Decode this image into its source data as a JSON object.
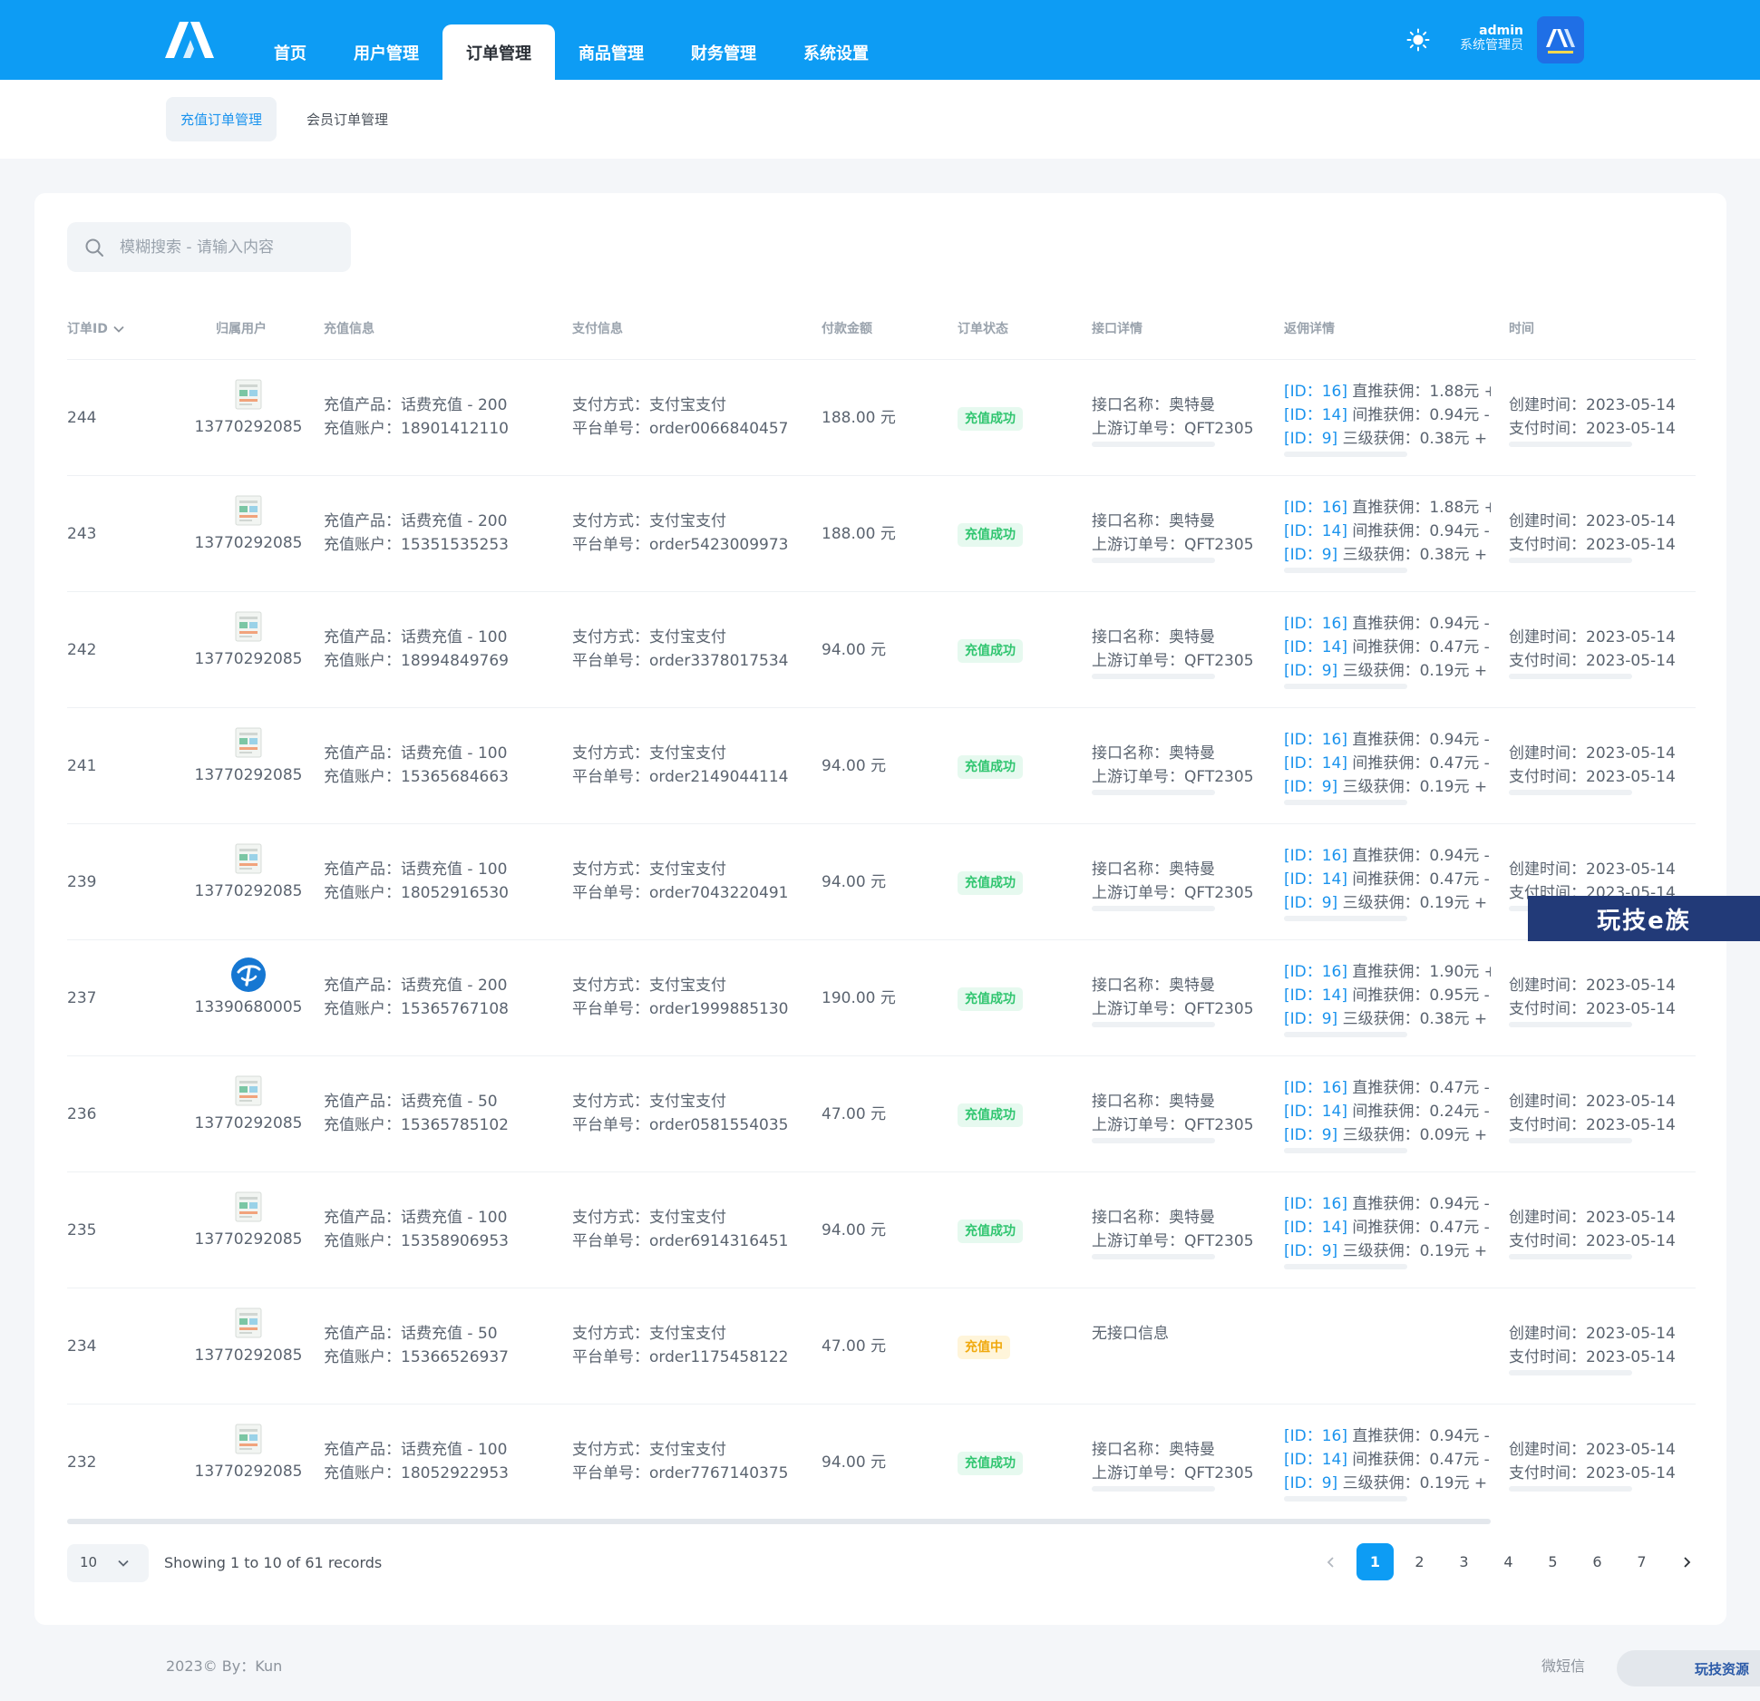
{
  "header": {
    "nav": [
      "首页",
      "用户管理",
      "订单管理",
      "商品管理",
      "财务管理",
      "系统设置"
    ],
    "active_index": 2,
    "user_name": "admin",
    "user_role": "系统管理员",
    "avatar_text": "AA"
  },
  "subnav": {
    "active": "充值订单管理",
    "other": "会员订单管理"
  },
  "search": {
    "placeholder": "模糊搜索 - 请输入内容"
  },
  "table": {
    "headers": [
      "订单ID",
      "归属用户",
      "充值信息",
      "支付信息",
      "付款金额",
      "订单状态",
      "接口详情",
      "返佣详情",
      "时间"
    ],
    "rows": [
      {
        "id": "244",
        "user": "13770292085",
        "product": "充值产品：话费充值 - 200",
        "account": "充值账户：18901412110",
        "pay_method": "支付方式：支付宝支付",
        "order_no": "平台单号：order0066840457",
        "amount": "188.00 元",
        "status": "充值成功",
        "api_name": "接口名称：奥特曼",
        "api_order": "上游订单号：QFT2305",
        "comm1_id": "[ID：16]",
        "comm1": "直推获佣：1.88元 +",
        "comm2_id": "[ID：14]",
        "comm2": "间推获佣：0.94元 -",
        "comm3_id": "[ID：9]",
        "comm3": "三级获佣：0.38元 +",
        "created": "创建时间：2023-05-14",
        "paid": "支付时间：2023-05-14"
      },
      {
        "id": "243",
        "user": "13770292085",
        "product": "充值产品：话费充值 - 200",
        "account": "充值账户：15351535253",
        "pay_method": "支付方式：支付宝支付",
        "order_no": "平台单号：order5423009973",
        "amount": "188.00 元",
        "status": "充值成功",
        "api_name": "接口名称：奥特曼",
        "api_order": "上游订单号：QFT2305",
        "comm1_id": "[ID：16]",
        "comm1": "直推获佣：1.88元 +",
        "comm2_id": "[ID：14]",
        "comm2": "间推获佣：0.94元 -",
        "comm3_id": "[ID：9]",
        "comm3": "三级获佣：0.38元 +",
        "created": "创建时间：2023-05-14",
        "paid": "支付时间：2023-05-14"
      },
      {
        "id": "242",
        "user": "13770292085",
        "product": "充值产品：话费充值 - 100",
        "account": "充值账户：18994849769",
        "pay_method": "支付方式：支付宝支付",
        "order_no": "平台单号：order3378017534",
        "amount": "94.00 元",
        "status": "充值成功",
        "api_name": "接口名称：奥特曼",
        "api_order": "上游订单号：QFT2305",
        "comm1_id": "[ID：16]",
        "comm1": "直推获佣：0.94元 -",
        "comm2_id": "[ID：14]",
        "comm2": "间推获佣：0.47元 -",
        "comm3_id": "[ID：9]",
        "comm3": "三级获佣：0.19元 +",
        "created": "创建时间：2023-05-14",
        "paid": "支付时间：2023-05-14"
      },
      {
        "id": "241",
        "user": "13770292085",
        "product": "充值产品：话费充值 - 100",
        "account": "充值账户：15365684663",
        "pay_method": "支付方式：支付宝支付",
        "order_no": "平台单号：order2149044114",
        "amount": "94.00 元",
        "status": "充值成功",
        "api_name": "接口名称：奥特曼",
        "api_order": "上游订单号：QFT2305",
        "comm1_id": "[ID：16]",
        "comm1": "直推获佣：0.94元 -",
        "comm2_id": "[ID：14]",
        "comm2": "间推获佣：0.47元 -",
        "comm3_id": "[ID：9]",
        "comm3": "三级获佣：0.19元 +",
        "created": "创建时间：2023-05-14",
        "paid": "支付时间：2023-05-14"
      },
      {
        "id": "239",
        "user": "13770292085",
        "product": "充值产品：话费充值 - 100",
        "account": "充值账户：18052916530",
        "pay_method": "支付方式：支付宝支付",
        "order_no": "平台单号：order7043220491",
        "amount": "94.00 元",
        "status": "充值成功",
        "api_name": "接口名称：奥特曼",
        "api_order": "上游订单号：QFT2305",
        "comm1_id": "[ID：16]",
        "comm1": "直推获佣：0.94元 -",
        "comm2_id": "[ID：14]",
        "comm2": "间推获佣：0.47元 -",
        "comm3_id": "[ID：9]",
        "comm3": "三级获佣：0.19元 +",
        "created": "创建时间：2023-05-14",
        "paid": "支付时间：2023-05-14"
      },
      {
        "id": "237",
        "user": "13390680005",
        "product": "充值产品：话费充值 - 200",
        "account": "充值账户：15365767108",
        "pay_method": "支付方式：支付宝支付",
        "order_no": "平台单号：order1999885130",
        "amount": "190.00 元",
        "status": "充值成功",
        "api_name": "接口名称：奥特曼",
        "api_order": "上游订单号：QFT2305",
        "comm1_id": "[ID：16]",
        "comm1": "直推获佣：1.90元 +",
        "comm2_id": "[ID：14]",
        "comm2": "间推获佣：0.95元 -",
        "comm3_id": "[ID：9]",
        "comm3": "三级获佣：0.38元 +",
        "created": "创建时间：2023-05-14",
        "paid": "支付时间：2023-05-14"
      },
      {
        "id": "236",
        "user": "13770292085",
        "product": "充值产品：话费充值 - 50",
        "account": "充值账户：15365785102",
        "pay_method": "支付方式：支付宝支付",
        "order_no": "平台单号：order0581554035",
        "amount": "47.00 元",
        "status": "充值成功",
        "api_name": "接口名称：奥特曼",
        "api_order": "上游订单号：QFT2305",
        "comm1_id": "[ID：16]",
        "comm1": "直推获佣：0.47元 -",
        "comm2_id": "[ID：14]",
        "comm2": "间推获佣：0.24元 -",
        "comm3_id": "[ID：9]",
        "comm3": "三级获佣：0.09元 +",
        "created": "创建时间：2023-05-14",
        "paid": "支付时间：2023-05-14"
      },
      {
        "id": "235",
        "user": "13770292085",
        "product": "充值产品：话费充值 - 100",
        "account": "充值账户：15358906953",
        "pay_method": "支付方式：支付宝支付",
        "order_no": "平台单号：order6914316451",
        "amount": "94.00 元",
        "status": "充值成功",
        "api_name": "接口名称：奥特曼",
        "api_order": "上游订单号：QFT2305",
        "comm1_id": "[ID：16]",
        "comm1": "直推获佣：0.94元 -",
        "comm2_id": "[ID：14]",
        "comm2": "间推获佣：0.47元 -",
        "comm3_id": "[ID：9]",
        "comm3": "三级获佣：0.19元 +",
        "created": "创建时间：2023-05-14",
        "paid": "支付时间：2023-05-14"
      },
      {
        "id": "234",
        "user": "13770292085",
        "product": "充值产品：话费充值 - 50",
        "account": "充值账户：15366526937",
        "pay_method": "支付方式：支付宝支付",
        "order_no": "平台单号：order1175458122",
        "amount": "47.00 元",
        "status": "充值中",
        "api_name": "无接口信息",
        "api_order": "",
        "comm1_id": "",
        "comm1": "",
        "comm2_id": "",
        "comm2": "",
        "comm3_id": "",
        "comm3": "",
        "created": "创建时间：2023-05-14",
        "paid": "支付时间：2023-05-14"
      },
      {
        "id": "232",
        "user": "13770292085",
        "product": "充值产品：话费充值 - 100",
        "account": "充值账户：18052922953",
        "pay_method": "支付方式：支付宝支付",
        "order_no": "平台单号：order7767140375",
        "amount": "94.00 元",
        "status": "充值成功",
        "api_name": "接口名称：奥特曼",
        "api_order": "上游订单号：QFT2305",
        "comm1_id": "[ID：16]",
        "comm1": "直推获佣：0.94元 -",
        "comm2_id": "[ID：14]",
        "comm2": "间推获佣：0.47元 -",
        "comm3_id": "[ID：9]",
        "comm3": "三级获佣：0.19元 +",
        "created": "创建时间：2023-05-14",
        "paid": "支付时间：2023-05-14"
      }
    ]
  },
  "pagination": {
    "page_size": "10",
    "records_text": "Showing 1 to 10 of 61 records",
    "pages": [
      "1",
      "2",
      "3",
      "4",
      "5",
      "6",
      "7"
    ],
    "current": "1"
  },
  "footer": {
    "copyright": "2023© By：Kun",
    "right": "微短信"
  },
  "watermarks": {
    "middle": "玩技e族",
    "bottom": "玩技资源"
  },
  "colors": {
    "brand": "#0d9cf4",
    "success": "#2fc56f",
    "pending": "#f0a90e",
    "link": "#1a93ee"
  }
}
